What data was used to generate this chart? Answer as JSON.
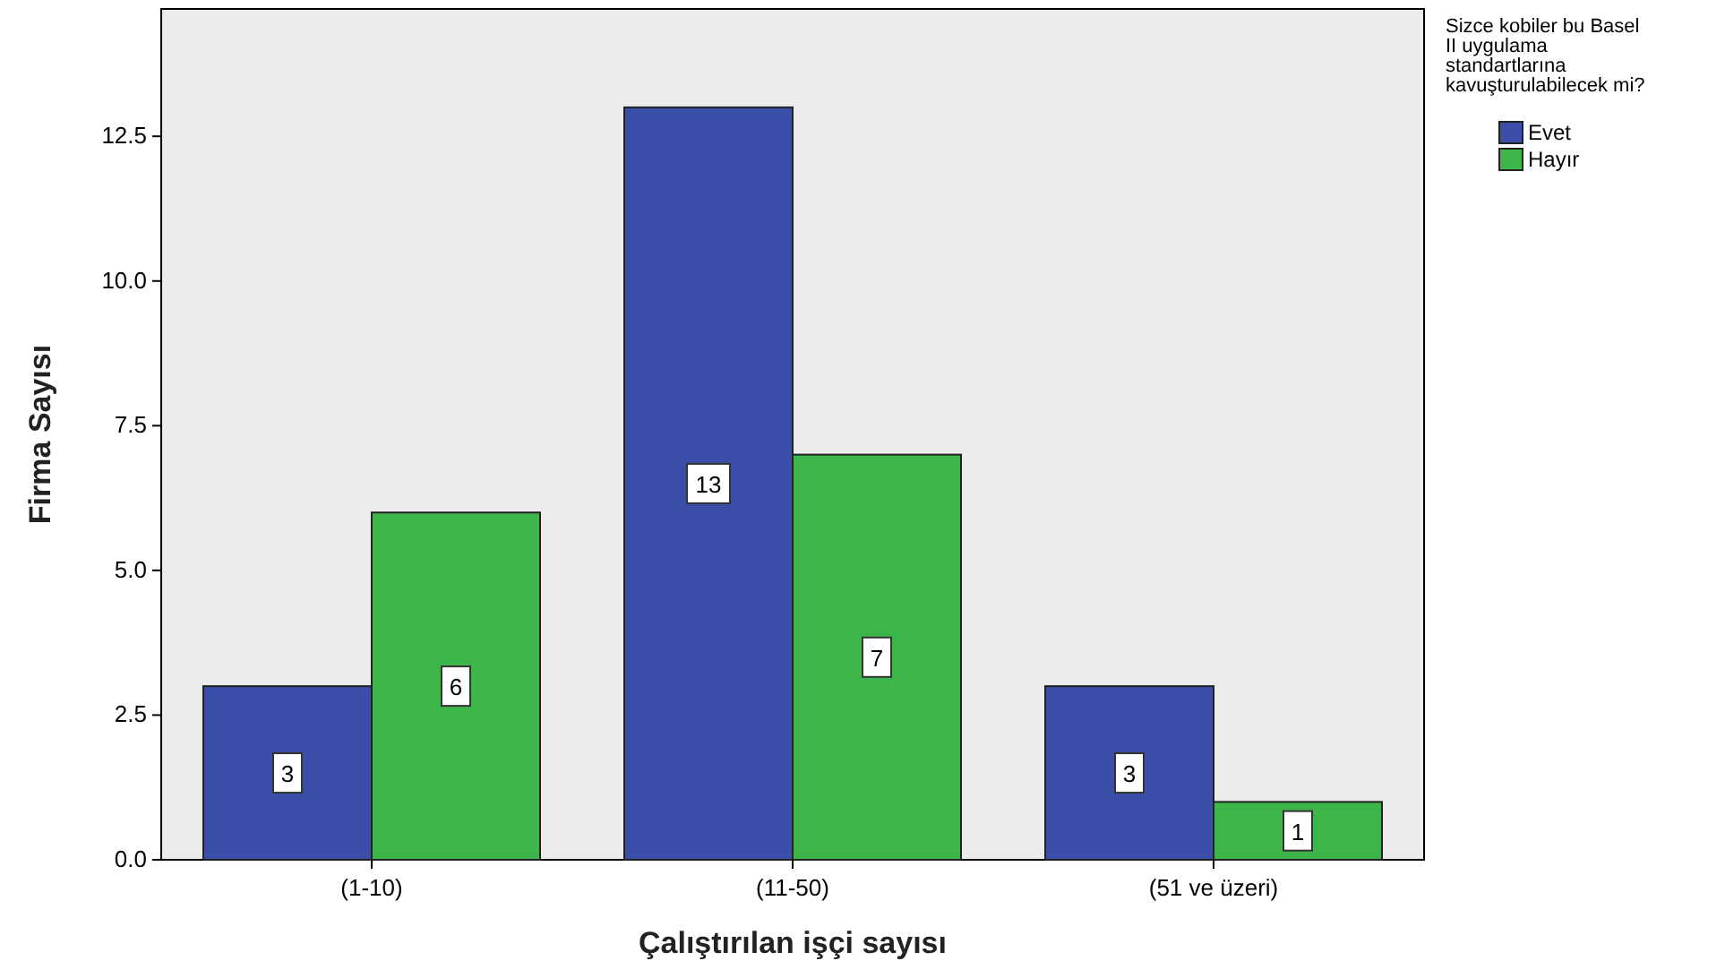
{
  "chart_data": {
    "type": "bar",
    "xlabel": "Çalıştırılan  işçi sayısı",
    "ylabel": "Firma Sayısı",
    "legend_title": "Sizce kobiler bu Basel II uygulama standartlarına kavuşturulabilecek mi?",
    "categories": [
      "(1-10)",
      "(11-50)",
      "(51 ve üzeri)"
    ],
    "series": [
      {
        "name": "Evet",
        "color": "#3a4fa8",
        "values": [
          3,
          13,
          3
        ]
      },
      {
        "name": "Hayır",
        "color": "#3cb54a",
        "values": [
          6,
          7,
          1
        ]
      }
    ],
    "ylim": [
      0,
      14.7
    ],
    "yticks": [
      {
        "value": 0,
        "label": "0.0"
      },
      {
        "value": 2.5,
        "label": "2.5"
      },
      {
        "value": 5,
        "label": "5.0"
      },
      {
        "value": 7.5,
        "label": "7.5"
      },
      {
        "value": 10,
        "label": "10.0"
      },
      {
        "value": 12.5,
        "label": "12.5"
      }
    ],
    "data_labels": true,
    "legend": "top right"
  }
}
